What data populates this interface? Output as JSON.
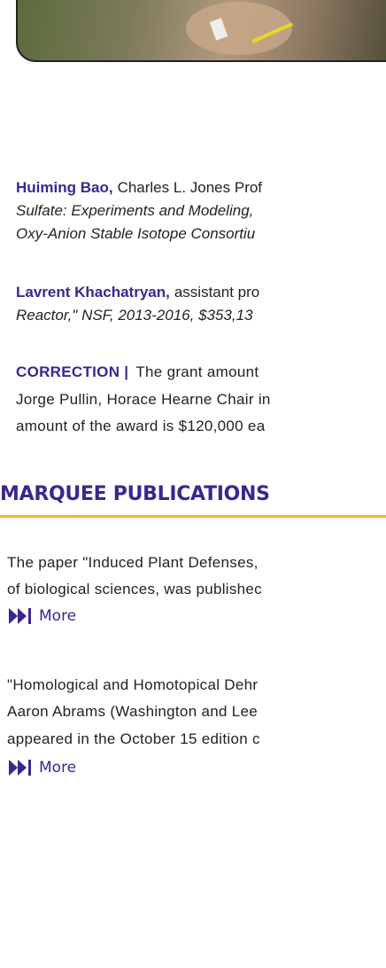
{
  "grants": [
    {
      "name": "Huiming Bao,",
      "lines": [
        "Charles L. Jones Prof",
        "Sulfate: Experiments and Modeling,",
        "Oxy-Anion Stable Isotope Consortiu"
      ]
    },
    {
      "name": "Lavrent Khachatryan,",
      "lines": [
        "assistant pro",
        "Reactor,\" NSF, 2013-2016, $353,13"
      ]
    }
  ],
  "correction": {
    "label": "CORRECTION |",
    "lines": [
      "The grant amount",
      "Jorge Pullin, Horace Hearne Chair in",
      "amount of the award is $120,000 ea"
    ]
  },
  "section_heading": "MARQUEE PUBLICATIONS",
  "publications": [
    {
      "lines": [
        "The paper \"Induced Plant Defenses,",
        "of biological sciences, was publishec"
      ],
      "link": "More"
    },
    {
      "lines": [
        "\"Homological and Homotopical Dehr",
        "Aaron Abrams (Washington and Lee",
        "appeared in the October 15 edition c"
      ],
      "link": "More"
    }
  ]
}
